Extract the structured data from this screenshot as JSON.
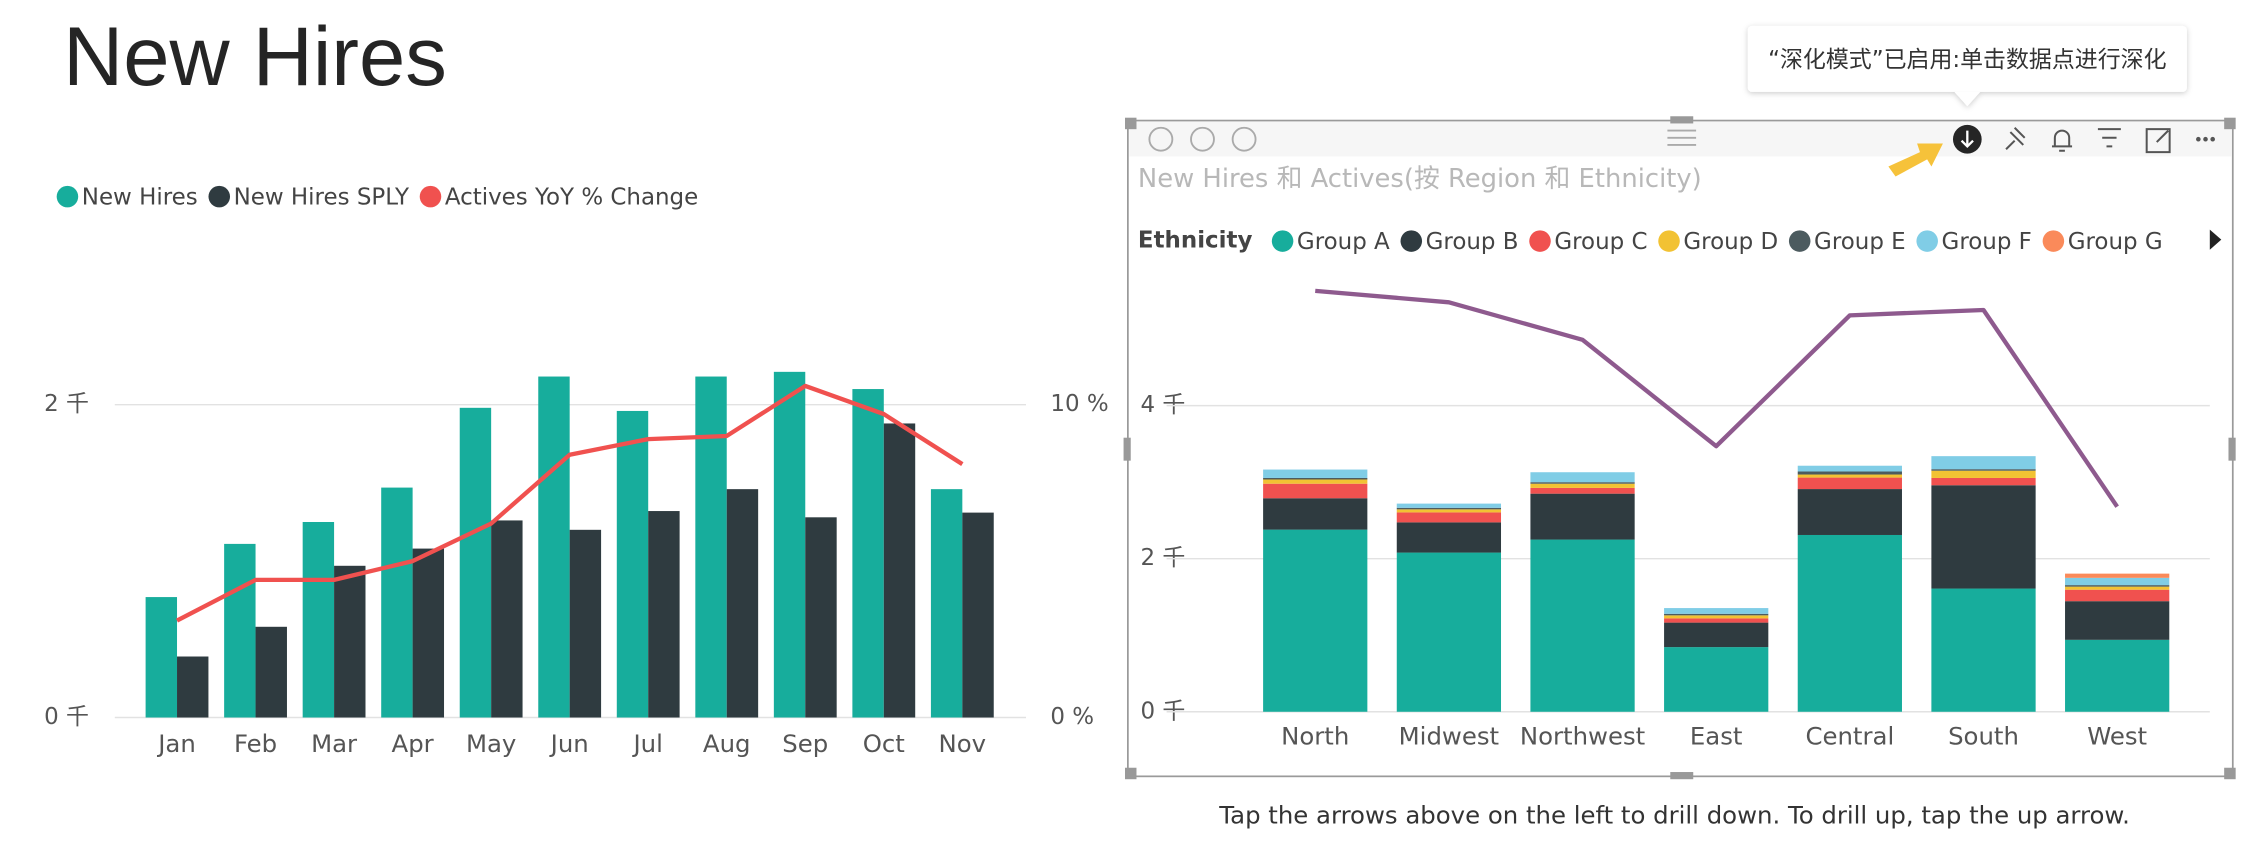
{
  "title": "New Hires",
  "tooltip": "“深化模式”已启用:单击数据点进行深化",
  "caption": "Tap the arrows above on the left to drill down. To drill up, tap the up arrow.",
  "chart_data": [
    {
      "type": "bar",
      "categories": [
        "Jan",
        "Feb",
        "Mar",
        "Apr",
        "May",
        "Jun",
        "Jul",
        "Aug",
        "Sep",
        "Oct",
        "Nov"
      ],
      "series": [
        {
          "name": "New Hires",
          "color": "#17ad9c",
          "values": [
            770,
            1110,
            1250,
            1470,
            1980,
            2180,
            1960,
            2180,
            2210,
            2100,
            1460
          ]
        },
        {
          "name": "New Hires SPLY",
          "color": "#2f3b40",
          "values": [
            390,
            580,
            970,
            1080,
            1260,
            1200,
            1320,
            1460,
            1280,
            1880,
            1310
          ]
        },
        {
          "name": "Actives YoY % Change",
          "color": "#f0514f",
          "type": "line",
          "axis": "y2",
          "values": [
            3.1,
            4.4,
            4.4,
            5.0,
            6.2,
            8.4,
            8.9,
            9.0,
            10.6,
            9.7,
            8.1
          ]
        }
      ],
      "ylim": [
        0,
        3000
      ],
      "yticks": [
        {
          "value": 0,
          "label": "0 千"
        },
        {
          "value": 2000,
          "label": "2 千"
        }
      ],
      "y2lim": [
        0,
        15
      ],
      "y2ticks": [
        {
          "value": 0,
          "label": "0 %"
        },
        {
          "value": 10,
          "label": "10 %"
        }
      ],
      "grid": true
    },
    {
      "type": "bar",
      "stacked": true,
      "title": "New Hires 和 Actives(按 Region 和 Ethnicity)",
      "legend_title": "Ethnicity",
      "categories": [
        "North",
        "Midwest",
        "Northwest",
        "East",
        "Central",
        "South",
        "West"
      ],
      "series": [
        {
          "name": "Group A",
          "color": "#17ad9c",
          "values": [
            2380,
            2080,
            2250,
            845,
            2310,
            1610,
            940
          ]
        },
        {
          "name": "Group B",
          "color": "#2f3b40",
          "values": [
            410,
            395,
            600,
            320,
            600,
            1350,
            505
          ]
        },
        {
          "name": "Group C",
          "color": "#f0514f",
          "values": [
            190,
            130,
            75,
            55,
            150,
            95,
            150
          ]
        },
        {
          "name": "Group D",
          "color": "#f2c233",
          "values": [
            55,
            40,
            55,
            40,
            40,
            95,
            40
          ]
        },
        {
          "name": "Group E",
          "color": "#4c5b5f",
          "values": [
            20,
            20,
            20,
            20,
            40,
            20,
            20
          ]
        },
        {
          "name": "Group F",
          "color": "#80cde6",
          "values": [
            110,
            55,
            130,
            75,
            75,
            170,
            95
          ]
        },
        {
          "name": "Group G",
          "color": "#fa8a5a",
          "values": [
            0,
            0,
            0,
            0,
            0,
            0,
            55
          ]
        },
        {
          "color": "#8e5a8e",
          "type": "line",
          "values": [
            5500,
            5350,
            4860,
            3470,
            5180,
            5250,
            2680
          ]
        }
      ],
      "ylim": [
        0,
        6000
      ],
      "yticks": [
        {
          "value": 0,
          "label": "0 千"
        },
        {
          "value": 2000,
          "label": "2 千"
        },
        {
          "value": 4000,
          "label": "4 千"
        }
      ],
      "grid": true
    }
  ]
}
